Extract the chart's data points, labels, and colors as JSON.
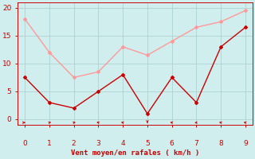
{
  "x": [
    0,
    1,
    2,
    3,
    4,
    5,
    6,
    7,
    8,
    9
  ],
  "rafales": [
    18,
    12,
    7.5,
    8.5,
    13,
    11.5,
    14,
    16.5,
    17.5,
    19.5
  ],
  "moyen": [
    7.5,
    3,
    2,
    5,
    8,
    1,
    7.5,
    3,
    13,
    16.5
  ],
  "rafales_color": "#ff9999",
  "moyen_color": "#cc0000",
  "bg_color": "#d0eeee",
  "grid_color": "#aacccc",
  "xlabel": "Vent moyen/en rafales ( km/h )",
  "xlabel_color": "#cc0000",
  "tick_color": "#cc0000",
  "ylim": [
    -1,
    21
  ],
  "yticks": [
    0,
    5,
    10,
    15,
    20
  ],
  "xlim": [
    -0.3,
    9.3
  ],
  "wind_dx": [
    1,
    1,
    1,
    -1,
    -1,
    0,
    -1,
    -1,
    -1,
    -1
  ],
  "wind_dy": [
    0,
    1,
    1,
    1,
    1,
    -1,
    1,
    -1,
    1,
    1
  ]
}
